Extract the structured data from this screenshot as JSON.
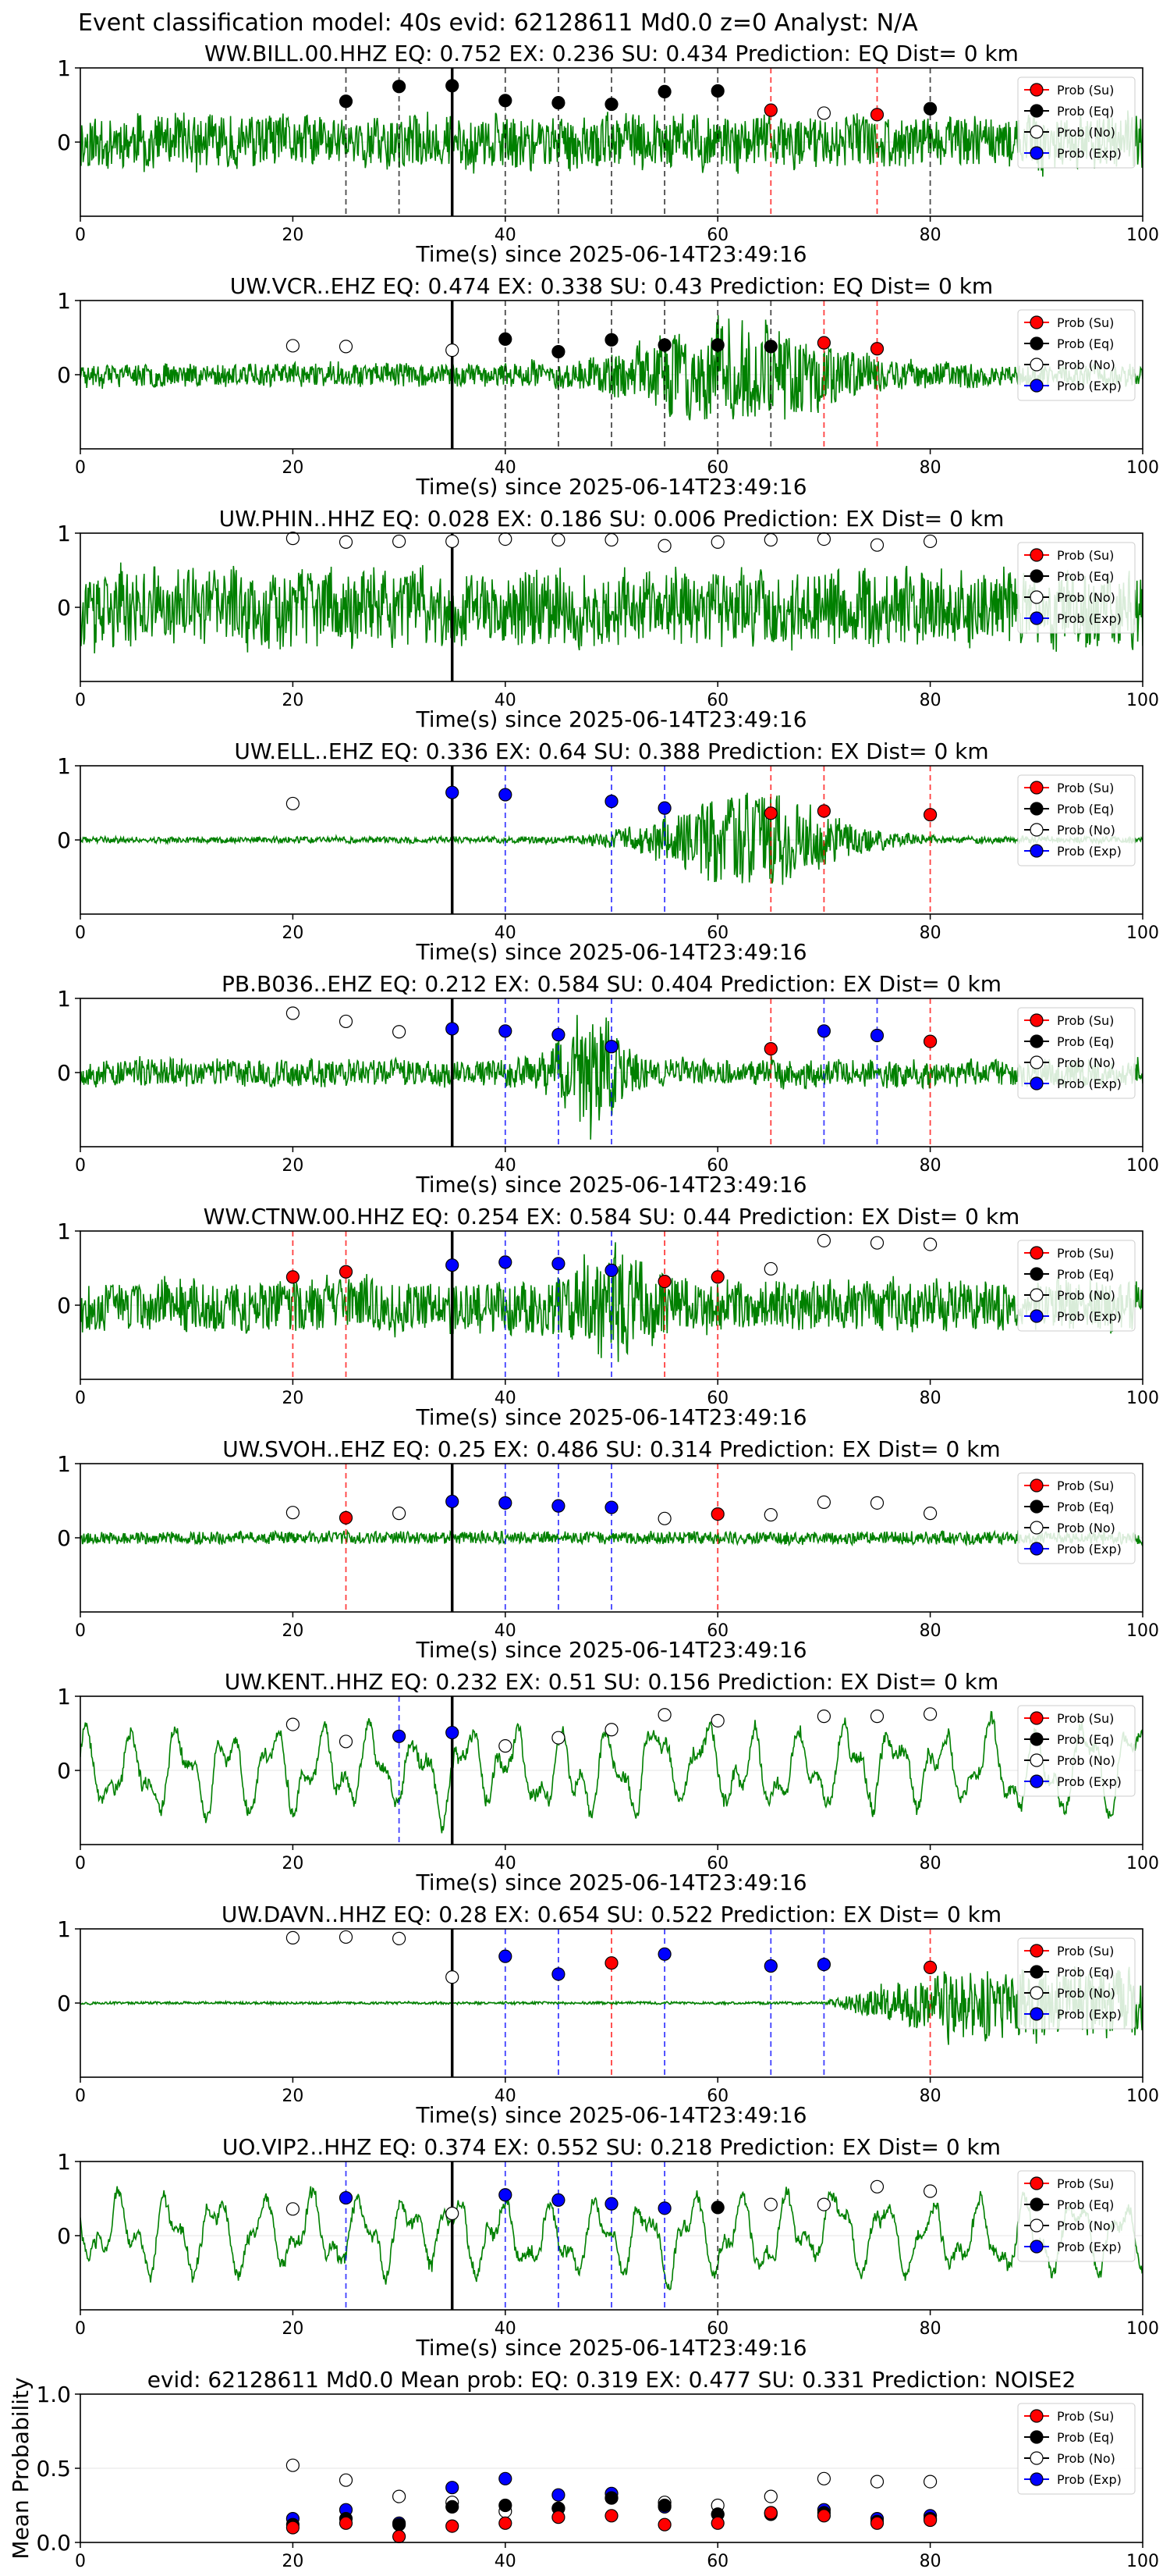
{
  "suptitle": "Event classification model: 40s evid: 62128611 Md0.0 z=0 Analyst: N/A",
  "legend_labels": [
    "Prob (Su)",
    "Prob (Eq)",
    "Prob (No)",
    "Prob (Exp)"
  ],
  "colors": {
    "su": "#ff0000",
    "eq": "#000000",
    "no": "#ffffff",
    "exp": "#0000ff",
    "wave": "#008000",
    "grid": "#e6e6e6"
  },
  "chart_data": [
    {
      "type": "line",
      "title": "WW.BILL.00.HHZ   EQ: 0.752   EX: 0.236   SU: 0.434   Prediction: EQ    Dist= 0 km",
      "xlabel": "Time(s) since 2025-06-14T23:49:16",
      "xlim": [
        0,
        100
      ],
      "ylim": [
        -1,
        1
      ],
      "xticks": [
        0,
        20,
        40,
        60,
        80,
        100
      ],
      "yticks": [
        0,
        1
      ],
      "origin_line_x": 35,
      "waveform": {
        "style": "broadband",
        "amplitude": 0.42,
        "seed": 11
      },
      "markers": [
        {
          "class": "eq",
          "x": 25,
          "y": 0.55
        },
        {
          "class": "eq",
          "x": 30,
          "y": 0.75
        },
        {
          "class": "eq",
          "x": 35,
          "y": 0.76
        },
        {
          "class": "eq",
          "x": 40,
          "y": 0.56
        },
        {
          "class": "eq",
          "x": 45,
          "y": 0.53
        },
        {
          "class": "eq",
          "x": 50,
          "y": 0.51
        },
        {
          "class": "eq",
          "x": 55,
          "y": 0.68
        },
        {
          "class": "eq",
          "x": 60,
          "y": 0.69
        },
        {
          "class": "su",
          "x": 65,
          "y": 0.43
        },
        {
          "class": "no",
          "x": 70,
          "y": 0.39
        },
        {
          "class": "su",
          "x": 75,
          "y": 0.37
        },
        {
          "class": "eq",
          "x": 80,
          "y": 0.45
        }
      ]
    },
    {
      "type": "line",
      "title": "UW.VCR..EHZ   EQ: 0.474   EX: 0.338   SU: 0.43   Prediction: EQ    Dist= 0 km",
      "xlabel": "Time(s) since 2025-06-14T23:49:16",
      "xlim": [
        0,
        100
      ],
      "ylim": [
        -1,
        1
      ],
      "xticks": [
        0,
        20,
        40,
        60,
        80,
        100
      ],
      "yticks": [
        0,
        1
      ],
      "origin_line_x": 35,
      "waveform": {
        "style": "burst",
        "amplitude": 0.18,
        "burst_center": 62,
        "burst_width": 10,
        "burst_amp": 0.65,
        "seed": 23
      },
      "markers": [
        {
          "class": "no",
          "x": 20,
          "y": 0.39
        },
        {
          "class": "no",
          "x": 25,
          "y": 0.38
        },
        {
          "class": "no",
          "x": 35,
          "y": 0.33
        },
        {
          "class": "eq",
          "x": 40,
          "y": 0.48
        },
        {
          "class": "eq",
          "x": 45,
          "y": 0.31
        },
        {
          "class": "eq",
          "x": 50,
          "y": 0.47
        },
        {
          "class": "eq",
          "x": 55,
          "y": 0.4
        },
        {
          "class": "eq",
          "x": 60,
          "y": 0.4
        },
        {
          "class": "eq",
          "x": 65,
          "y": 0.38
        },
        {
          "class": "su",
          "x": 70,
          "y": 0.43
        },
        {
          "class": "su",
          "x": 75,
          "y": 0.35
        }
      ]
    },
    {
      "type": "line",
      "title": "UW.PHIN..HHZ   EQ: 0.028   EX: 0.186   SU: 0.006   Prediction: EX    Dist= 0 km",
      "xlabel": "Time(s) since 2025-06-14T23:49:16",
      "xlim": [
        0,
        100
      ],
      "ylim": [
        -1,
        1
      ],
      "xticks": [
        0,
        20,
        40,
        60,
        80,
        100
      ],
      "yticks": [
        0,
        1
      ],
      "origin_line_x": 35,
      "waveform": {
        "style": "broadband",
        "amplitude": 0.6,
        "seed": 37
      },
      "markers": [
        {
          "class": "no",
          "x": 20,
          "y": 0.93
        },
        {
          "class": "no",
          "x": 25,
          "y": 0.88
        },
        {
          "class": "no",
          "x": 30,
          "y": 0.89
        },
        {
          "class": "no",
          "x": 35,
          "y": 0.89
        },
        {
          "class": "no",
          "x": 40,
          "y": 0.92
        },
        {
          "class": "no",
          "x": 45,
          "y": 0.91
        },
        {
          "class": "no",
          "x": 50,
          "y": 0.91
        },
        {
          "class": "no",
          "x": 55,
          "y": 0.83
        },
        {
          "class": "no",
          "x": 60,
          "y": 0.88
        },
        {
          "class": "no",
          "x": 65,
          "y": 0.91
        },
        {
          "class": "no",
          "x": 70,
          "y": 0.92
        },
        {
          "class": "no",
          "x": 75,
          "y": 0.84
        },
        {
          "class": "no",
          "x": 80,
          "y": 0.89
        }
      ]
    },
    {
      "type": "line",
      "title": "UW.ELL..EHZ   EQ: 0.336   EX: 0.64   SU: 0.388   Prediction: EX    Dist= 0 km",
      "xlabel": "Time(s) since 2025-06-14T23:49:16",
      "xlim": [
        0,
        100
      ],
      "ylim": [
        -1,
        1
      ],
      "xticks": [
        0,
        20,
        40,
        60,
        80,
        100
      ],
      "yticks": [
        0,
        1
      ],
      "origin_line_x": 35,
      "waveform": {
        "style": "burst",
        "amplitude": 0.05,
        "burst_center": 63,
        "burst_width": 9,
        "burst_amp": 0.7,
        "seed": 41
      },
      "markers": [
        {
          "class": "no",
          "x": 20,
          "y": 0.49
        },
        {
          "class": "exp",
          "x": 35,
          "y": 0.64
        },
        {
          "class": "exp",
          "x": 40,
          "y": 0.61
        },
        {
          "class": "exp",
          "x": 50,
          "y": 0.52
        },
        {
          "class": "exp",
          "x": 55,
          "y": 0.43
        },
        {
          "class": "su",
          "x": 65,
          "y": 0.36
        },
        {
          "class": "su",
          "x": 70,
          "y": 0.39
        },
        {
          "class": "su",
          "x": 80,
          "y": 0.34
        }
      ]
    },
    {
      "type": "line",
      "title": "PB.B036..EHZ   EQ: 0.212   EX: 0.584   SU: 0.404   Prediction: EX    Dist= 0 km",
      "xlabel": "Time(s) since 2025-06-14T23:49:16",
      "xlim": [
        0,
        100
      ],
      "ylim": [
        -1,
        1
      ],
      "xticks": [
        0,
        20,
        40,
        60,
        80,
        100
      ],
      "yticks": [
        0,
        1
      ],
      "origin_line_x": 35,
      "waveform": {
        "style": "burst",
        "amplitude": 0.22,
        "burst_center": 48,
        "burst_width": 3,
        "burst_amp": 0.75,
        "seed": 53
      },
      "markers": [
        {
          "class": "no",
          "x": 20,
          "y": 0.8
        },
        {
          "class": "no",
          "x": 25,
          "y": 0.69
        },
        {
          "class": "no",
          "x": 30,
          "y": 0.55
        },
        {
          "class": "exp",
          "x": 35,
          "y": 0.59
        },
        {
          "class": "exp",
          "x": 40,
          "y": 0.56
        },
        {
          "class": "exp",
          "x": 45,
          "y": 0.51
        },
        {
          "class": "exp",
          "x": 50,
          "y": 0.35
        },
        {
          "class": "su",
          "x": 65,
          "y": 0.32
        },
        {
          "class": "exp",
          "x": 70,
          "y": 0.56
        },
        {
          "class": "exp",
          "x": 75,
          "y": 0.5
        },
        {
          "class": "su",
          "x": 80,
          "y": 0.42
        }
      ]
    },
    {
      "type": "line",
      "title": "WW.CTNW.00.HHZ   EQ: 0.254   EX: 0.584   SU: 0.44   Prediction: EX    Dist= 0 km",
      "xlabel": "Time(s) since 2025-06-14T23:49:16",
      "xlim": [
        0,
        100
      ],
      "ylim": [
        -1,
        1
      ],
      "xticks": [
        0,
        20,
        40,
        60,
        80,
        100
      ],
      "yticks": [
        0,
        1
      ],
      "origin_line_x": 35,
      "waveform": {
        "style": "burst",
        "amplitude": 0.4,
        "burst_center": 50,
        "burst_width": 4,
        "burst_amp": 0.55,
        "seed": 67
      },
      "markers": [
        {
          "class": "su",
          "x": 20,
          "y": 0.38
        },
        {
          "class": "su",
          "x": 25,
          "y": 0.45
        },
        {
          "class": "exp",
          "x": 35,
          "y": 0.54
        },
        {
          "class": "exp",
          "x": 40,
          "y": 0.58
        },
        {
          "class": "exp",
          "x": 45,
          "y": 0.56
        },
        {
          "class": "exp",
          "x": 50,
          "y": 0.47
        },
        {
          "class": "su",
          "x": 55,
          "y": 0.32
        },
        {
          "class": "su",
          "x": 60,
          "y": 0.38
        },
        {
          "class": "no",
          "x": 65,
          "y": 0.49
        },
        {
          "class": "no",
          "x": 70,
          "y": 0.87
        },
        {
          "class": "no",
          "x": 75,
          "y": 0.84
        },
        {
          "class": "no",
          "x": 80,
          "y": 0.82
        }
      ]
    },
    {
      "type": "line",
      "title": "UW.SVOH..EHZ   EQ: 0.25   EX: 0.486   SU: 0.314   Prediction: EX    Dist= 0 km",
      "xlabel": "Time(s) since 2025-06-14T23:49:16",
      "xlim": [
        0,
        100
      ],
      "ylim": [
        -1,
        1
      ],
      "xticks": [
        0,
        20,
        40,
        60,
        80,
        100
      ],
      "yticks": [
        0,
        1
      ],
      "origin_line_x": 35,
      "waveform": {
        "style": "broadband",
        "amplitude": 0.1,
        "seed": 79
      },
      "markers": [
        {
          "class": "no",
          "x": 20,
          "y": 0.34
        },
        {
          "class": "su",
          "x": 25,
          "y": 0.27
        },
        {
          "class": "no",
          "x": 30,
          "y": 0.33
        },
        {
          "class": "exp",
          "x": 35,
          "y": 0.49
        },
        {
          "class": "exp",
          "x": 40,
          "y": 0.47
        },
        {
          "class": "exp",
          "x": 45,
          "y": 0.43
        },
        {
          "class": "exp",
          "x": 50,
          "y": 0.41
        },
        {
          "class": "no",
          "x": 55,
          "y": 0.26
        },
        {
          "class": "su",
          "x": 60,
          "y": 0.32
        },
        {
          "class": "no",
          "x": 65,
          "y": 0.31
        },
        {
          "class": "no",
          "x": 70,
          "y": 0.48
        },
        {
          "class": "no",
          "x": 75,
          "y": 0.47
        },
        {
          "class": "no",
          "x": 80,
          "y": 0.33
        }
      ]
    },
    {
      "type": "line",
      "title": "UW.KENT..HHZ   EQ: 0.232   EX: 0.51   SU: 0.156   Prediction: EX    Dist= 0 km",
      "xlabel": "Time(s) since 2025-06-14T23:49:16",
      "xlim": [
        0,
        100
      ],
      "ylim": [
        -1,
        1
      ],
      "xticks": [
        0,
        20,
        40,
        60,
        80,
        100
      ],
      "yticks": [
        0,
        1
      ],
      "origin_line_x": 35,
      "waveform": {
        "style": "lowfreq",
        "amplitude": 0.6,
        "seed": 89
      },
      "markers": [
        {
          "class": "no",
          "x": 20,
          "y": 0.62
        },
        {
          "class": "no",
          "x": 25,
          "y": 0.39
        },
        {
          "class": "exp",
          "x": 30,
          "y": 0.46
        },
        {
          "class": "exp",
          "x": 35,
          "y": 0.51
        },
        {
          "class": "no",
          "x": 40,
          "y": 0.33
        },
        {
          "class": "no",
          "x": 45,
          "y": 0.44
        },
        {
          "class": "no",
          "x": 50,
          "y": 0.55
        },
        {
          "class": "no",
          "x": 55,
          "y": 0.75
        },
        {
          "class": "no",
          "x": 60,
          "y": 0.67
        },
        {
          "class": "no",
          "x": 70,
          "y": 0.73
        },
        {
          "class": "no",
          "x": 75,
          "y": 0.73
        },
        {
          "class": "no",
          "x": 80,
          "y": 0.76
        }
      ]
    },
    {
      "type": "line",
      "title": "UW.DAVN..HHZ   EQ: 0.28   EX: 0.654   SU: 0.522   Prediction: EX    Dist= 0 km",
      "xlabel": "Time(s) since 2025-06-14T23:49:16",
      "xlim": [
        0,
        100
      ],
      "ylim": [
        -1,
        1
      ],
      "xticks": [
        0,
        20,
        40,
        60,
        80,
        100
      ],
      "yticks": [
        0,
        1
      ],
      "origin_line_x": 35,
      "waveform": {
        "style": "ramp",
        "amplitude": 0.02,
        "ramp_start": 70,
        "ramp_amp": 0.55,
        "seed": 97
      },
      "markers": [
        {
          "class": "no",
          "x": 20,
          "y": 0.88
        },
        {
          "class": "no",
          "x": 25,
          "y": 0.89
        },
        {
          "class": "no",
          "x": 30,
          "y": 0.87
        },
        {
          "class": "no",
          "x": 35,
          "y": 0.35
        },
        {
          "class": "exp",
          "x": 40,
          "y": 0.63
        },
        {
          "class": "exp",
          "x": 45,
          "y": 0.39
        },
        {
          "class": "su",
          "x": 50,
          "y": 0.54
        },
        {
          "class": "exp",
          "x": 55,
          "y": 0.66
        },
        {
          "class": "exp",
          "x": 65,
          "y": 0.5
        },
        {
          "class": "exp",
          "x": 70,
          "y": 0.52
        },
        {
          "class": "su",
          "x": 80,
          "y": 0.48
        }
      ]
    },
    {
      "type": "line",
      "title": "UO.VIP2..HHZ   EQ: 0.374   EX: 0.552   SU: 0.218   Prediction: EX    Dist= 0 km",
      "xlabel": "Time(s) since 2025-06-14T23:49:16",
      "xlim": [
        0,
        100
      ],
      "ylim": [
        -1,
        1
      ],
      "xticks": [
        0,
        20,
        40,
        60,
        80,
        100
      ],
      "yticks": [
        0,
        1
      ],
      "origin_line_x": 35,
      "waveform": {
        "style": "lowfreq",
        "amplitude": 0.55,
        "seed": 103
      },
      "markers": [
        {
          "class": "no",
          "x": 20,
          "y": 0.36
        },
        {
          "class": "exp",
          "x": 25,
          "y": 0.51
        },
        {
          "class": "no",
          "x": 35,
          "y": 0.3
        },
        {
          "class": "exp",
          "x": 40,
          "y": 0.55
        },
        {
          "class": "exp",
          "x": 45,
          "y": 0.48
        },
        {
          "class": "exp",
          "x": 50,
          "y": 0.43
        },
        {
          "class": "exp",
          "x": 55,
          "y": 0.37
        },
        {
          "class": "eq",
          "x": 60,
          "y": 0.38
        },
        {
          "class": "no",
          "x": 65,
          "y": 0.42
        },
        {
          "class": "no",
          "x": 70,
          "y": 0.42
        },
        {
          "class": "no",
          "x": 75,
          "y": 0.66
        },
        {
          "class": "no",
          "x": 80,
          "y": 0.6
        }
      ]
    },
    {
      "type": "scatter",
      "title": "evid: 62128611  Md0.0   Mean prob:   EQ: 0.319  EX: 0.477  SU: 0.331   Prediction: NOISE2",
      "xlabel": "",
      "ylabel": "Mean Probability",
      "xlim": [
        0,
        100
      ],
      "ylim": [
        0,
        1
      ],
      "xticks": [
        0,
        20,
        40,
        60,
        80,
        100
      ],
      "yticks": [
        0.0,
        0.5,
        1.0
      ],
      "ytick_labels": [
        "0.0",
        "0.5",
        "1.0"
      ],
      "x": [
        20,
        25,
        30,
        35,
        40,
        45,
        50,
        55,
        60,
        65,
        70,
        75,
        80
      ],
      "series": [
        {
          "class": "no",
          "values": [
            0.52,
            0.42,
            0.31,
            0.27,
            0.21,
            0.23,
            0.3,
            0.27,
            0.25,
            0.31,
            0.43,
            0.41,
            0.41
          ]
        },
        {
          "class": "exp",
          "values": [
            0.16,
            0.22,
            0.13,
            0.37,
            0.43,
            0.32,
            0.33,
            0.24,
            0.19,
            0.2,
            0.22,
            0.16,
            0.18
          ]
        },
        {
          "class": "eq",
          "values": [
            0.12,
            0.16,
            0.12,
            0.24,
            0.25,
            0.23,
            0.3,
            0.25,
            0.19,
            0.19,
            0.2,
            0.14,
            0.16
          ]
        },
        {
          "class": "su",
          "values": [
            0.1,
            0.13,
            0.04,
            0.11,
            0.13,
            0.17,
            0.18,
            0.12,
            0.13,
            0.2,
            0.18,
            0.13,
            0.15
          ]
        }
      ]
    }
  ]
}
